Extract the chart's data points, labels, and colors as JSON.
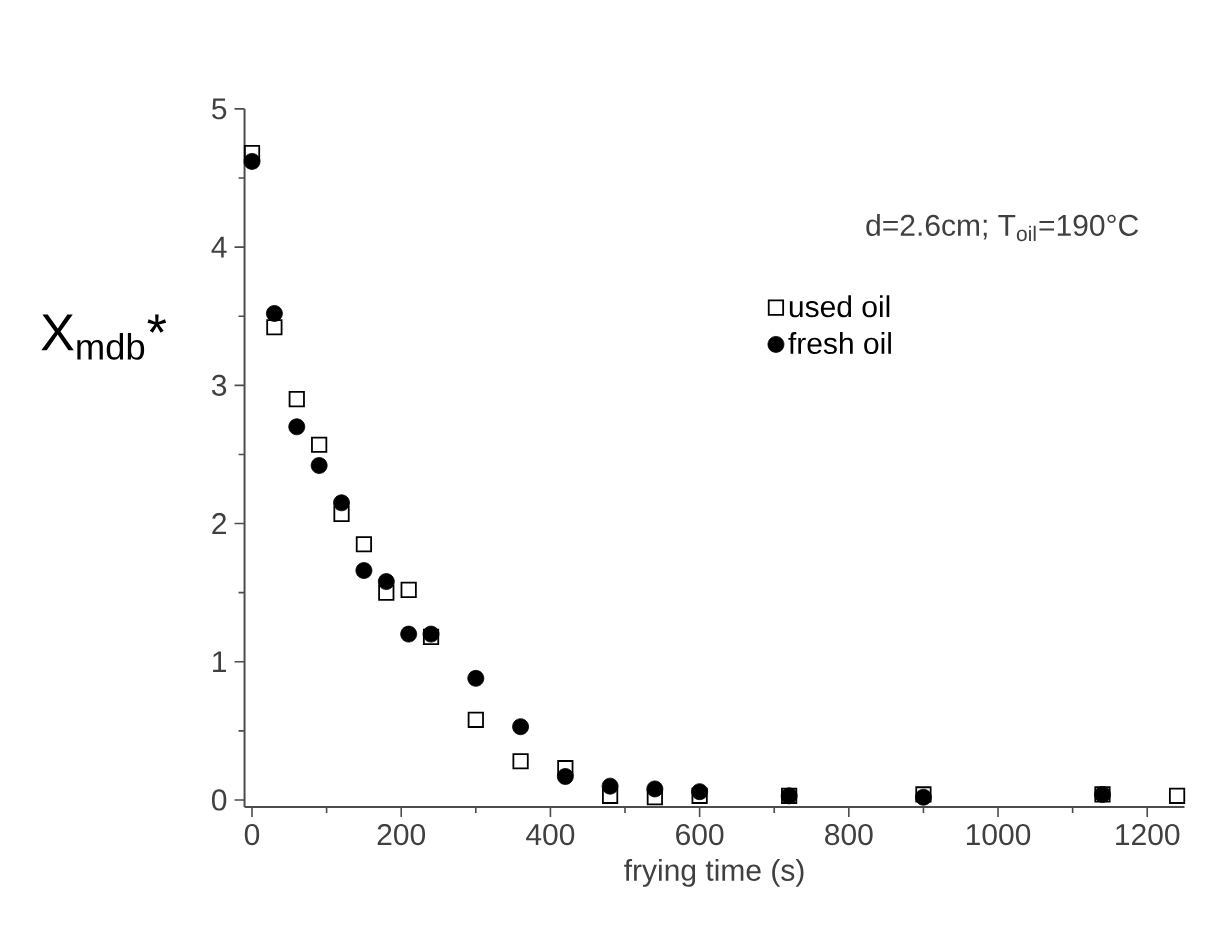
{
  "chart_data": {
    "type": "scatter",
    "xlabel": "frying time (s)",
    "ylabel": "X$_{mdb}$*",
    "annotations": [
      "d=2.6cm; T$_{oil}$=190°C"
    ],
    "xlim": [
      -10,
      1250
    ],
    "ylim": [
      -0.05,
      5
    ],
    "xticks": [
      0,
      200,
      400,
      600,
      800,
      1000,
      1200
    ],
    "yticks": [
      0,
      1,
      2,
      3,
      4,
      5
    ],
    "legend": "top right",
    "grid": false,
    "series": [
      {
        "name": "used oil",
        "color": "#000000",
        "marker": "square",
        "x": [
          0,
          30,
          60,
          90,
          120,
          150,
          180,
          210,
          240,
          300,
          360,
          420,
          480,
          540,
          600,
          720,
          900,
          1140,
          1240
        ],
        "values": [
          4.68,
          3.42,
          2.9,
          2.57,
          2.07,
          1.85,
          1.5,
          1.52,
          1.18,
          0.58,
          0.28,
          0.23,
          0.03,
          0.02,
          0.03,
          0.03,
          0.04,
          0.04,
          0.03
        ]
      },
      {
        "name": "fresh oil",
        "color": "#000000",
        "marker": "circle",
        "x": [
          0,
          30,
          60,
          90,
          120,
          150,
          180,
          210,
          240,
          300,
          360,
          420,
          480,
          540,
          600,
          720,
          900,
          1140
        ],
        "values": [
          4.62,
          3.52,
          2.7,
          2.42,
          2.15,
          1.66,
          1.58,
          1.2,
          1.2,
          0.88,
          0.53,
          0.17,
          0.1,
          0.08,
          0.06,
          0.03,
          0.02,
          0.04
        ]
      }
    ]
  }
}
